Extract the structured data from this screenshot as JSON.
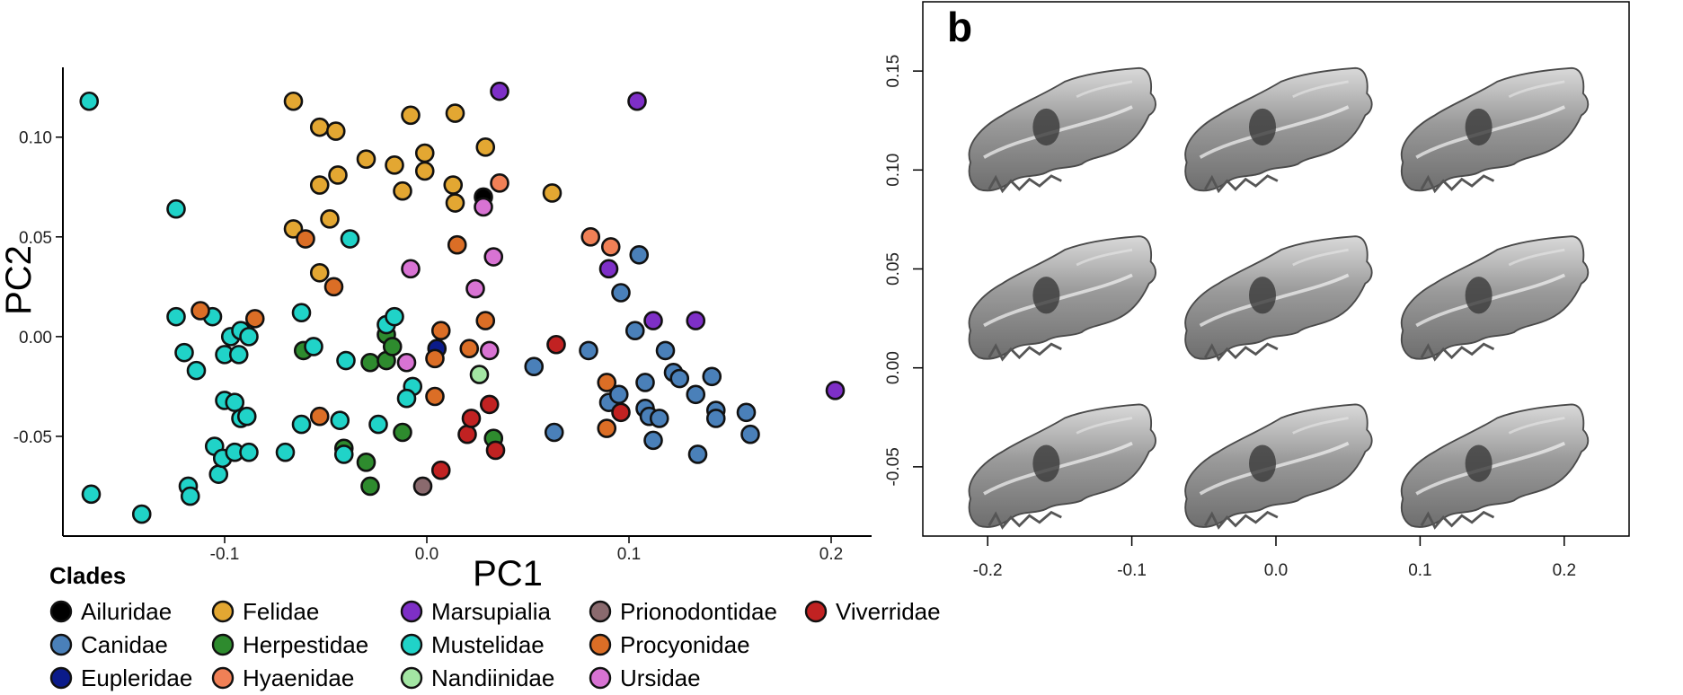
{
  "chart_data": [
    {
      "type": "scatter",
      "xlabel": "PC1",
      "ylabel": "PC2",
      "x_ticks": [
        "-0.1",
        "0.0",
        "0.1",
        "0.2"
      ],
      "y_ticks": [
        "0.10",
        "0.05",
        "0.00",
        "-0.05"
      ],
      "xlim": [
        -0.18,
        0.22
      ],
      "ylim": [
        -0.1,
        0.135
      ],
      "legend_title": "Clades",
      "legend_position": "bottom-left",
      "series": [
        {
          "name": "Ailuridae",
          "color": "#000000",
          "points": [
            [
              0.028,
              0.07
            ]
          ]
        },
        {
          "name": "Canidae",
          "color": "#4a80b9",
          "points": [
            [
              0.053,
              -0.015
            ],
            [
              0.063,
              -0.048
            ],
            [
              0.08,
              -0.007
            ],
            [
              0.09,
              -0.033
            ],
            [
              0.095,
              -0.029
            ],
            [
              0.096,
              0.022
            ],
            [
              0.103,
              0.003
            ],
            [
              0.105,
              0.041
            ],
            [
              0.108,
              -0.023
            ],
            [
              0.108,
              -0.036
            ],
            [
              0.11,
              -0.04
            ],
            [
              0.112,
              -0.052
            ],
            [
              0.115,
              -0.041
            ],
            [
              0.118,
              -0.007
            ],
            [
              0.122,
              -0.018
            ],
            [
              0.125,
              -0.021
            ],
            [
              0.133,
              -0.029
            ],
            [
              0.134,
              -0.059
            ],
            [
              0.141,
              -0.02
            ],
            [
              0.143,
              -0.037
            ],
            [
              0.143,
              -0.041
            ],
            [
              0.158,
              -0.038
            ],
            [
              0.16,
              -0.049
            ]
          ]
        },
        {
          "name": "Eupleridae",
          "color": "#0b1b8a",
          "points": [
            [
              0.005,
              -0.006
            ]
          ]
        },
        {
          "name": "Felidae",
          "color": "#e3a732",
          "points": [
            [
              -0.066,
              0.118
            ],
            [
              -0.066,
              0.054
            ],
            [
              -0.053,
              0.105
            ],
            [
              -0.053,
              0.076
            ],
            [
              -0.053,
              0.032
            ],
            [
              -0.048,
              0.059
            ],
            [
              -0.045,
              0.103
            ],
            [
              -0.044,
              0.081
            ],
            [
              -0.03,
              0.089
            ],
            [
              -0.016,
              0.086
            ],
            [
              -0.012,
              0.073
            ],
            [
              -0.008,
              0.111
            ],
            [
              -0.001,
              0.092
            ],
            [
              -0.001,
              0.083
            ],
            [
              0.013,
              0.076
            ],
            [
              0.014,
              0.112
            ],
            [
              0.014,
              0.067
            ],
            [
              0.029,
              0.095
            ],
            [
              0.062,
              0.072
            ]
          ]
        },
        {
          "name": "Herpestidae",
          "color": "#2e8b2e",
          "points": [
            [
              -0.061,
              -0.007
            ],
            [
              -0.041,
              -0.056
            ],
            [
              -0.03,
              -0.063
            ],
            [
              -0.028,
              -0.075
            ],
            [
              -0.028,
              -0.013
            ],
            [
              -0.02,
              -0.012
            ],
            [
              -0.02,
              0.001
            ],
            [
              -0.017,
              -0.005
            ],
            [
              -0.012,
              -0.048
            ],
            [
              0.033,
              -0.051
            ]
          ]
        },
        {
          "name": "Hyaenidae",
          "color": "#f08056",
          "points": [
            [
              0.036,
              0.077
            ],
            [
              0.081,
              0.05
            ],
            [
              0.091,
              0.045
            ]
          ]
        },
        {
          "name": "Marsupialia",
          "color": "#7e2fc7",
          "points": [
            [
              0.036,
              0.123
            ],
            [
              0.104,
              0.118
            ],
            [
              0.09,
              0.034
            ],
            [
              0.112,
              0.008
            ],
            [
              0.133,
              0.008
            ],
            [
              0.202,
              -0.027
            ]
          ]
        },
        {
          "name": "Mustelidae",
          "color": "#20d3c8",
          "points": [
            [
              -0.167,
              0.118
            ],
            [
              -0.124,
              0.064
            ],
            [
              -0.166,
              -0.079
            ],
            [
              -0.141,
              -0.089
            ],
            [
              -0.124,
              0.01
            ],
            [
              -0.12,
              -0.008
            ],
            [
              -0.118,
              -0.075
            ],
            [
              -0.117,
              -0.08
            ],
            [
              -0.114,
              -0.017
            ],
            [
              -0.106,
              0.01
            ],
            [
              -0.105,
              -0.055
            ],
            [
              -0.103,
              -0.069
            ],
            [
              -0.101,
              -0.061
            ],
            [
              -0.1,
              -0.009
            ],
            [
              -0.1,
              -0.032
            ],
            [
              -0.097,
              0.0
            ],
            [
              -0.095,
              -0.033
            ],
            [
              -0.095,
              -0.058
            ],
            [
              -0.093,
              -0.009
            ],
            [
              -0.092,
              0.003
            ],
            [
              -0.092,
              -0.041
            ],
            [
              -0.089,
              -0.04
            ],
            [
              -0.088,
              0.0
            ],
            [
              -0.088,
              -0.058
            ],
            [
              -0.07,
              -0.058
            ],
            [
              -0.062,
              -0.044
            ],
            [
              -0.062,
              0.012
            ],
            [
              -0.056,
              -0.005
            ],
            [
              -0.043,
              -0.042
            ],
            [
              -0.041,
              -0.059
            ],
            [
              -0.04,
              -0.012
            ],
            [
              -0.038,
              0.049
            ],
            [
              -0.024,
              -0.044
            ],
            [
              -0.02,
              0.006
            ],
            [
              -0.016,
              0.01
            ],
            [
              -0.007,
              -0.025
            ],
            [
              -0.01,
              -0.031
            ]
          ]
        },
        {
          "name": "Nandiinidae",
          "color": "#a3e6a3",
          "points": [
            [
              0.026,
              -0.019
            ]
          ]
        },
        {
          "name": "Prionodontidae",
          "color": "#8a6a6e",
          "points": [
            [
              -0.002,
              -0.075
            ]
          ]
        },
        {
          "name": "Procyonidae",
          "color": "#db6e26",
          "points": [
            [
              -0.112,
              0.013
            ],
            [
              -0.085,
              0.009
            ],
            [
              -0.06,
              0.049
            ],
            [
              -0.053,
              -0.04
            ],
            [
              -0.046,
              0.025
            ],
            [
              0.004,
              -0.011
            ],
            [
              0.004,
              -0.03
            ],
            [
              0.007,
              0.003
            ],
            [
              0.015,
              0.046
            ],
            [
              0.021,
              -0.006
            ],
            [
              0.029,
              0.008
            ],
            [
              0.089,
              -0.023
            ],
            [
              0.089,
              -0.046
            ]
          ]
        },
        {
          "name": "Ursidae",
          "color": "#d873d3",
          "points": [
            [
              -0.008,
              0.034
            ],
            [
              -0.01,
              -0.013
            ],
            [
              0.024,
              0.024
            ],
            [
              0.028,
              0.065
            ],
            [
              0.031,
              -0.007
            ],
            [
              0.033,
              0.04
            ]
          ]
        },
        {
          "name": "Viverridae",
          "color": "#c12222",
          "points": [
            [
              0.007,
              -0.067
            ],
            [
              0.02,
              -0.049
            ],
            [
              0.022,
              -0.041
            ],
            [
              0.031,
              -0.034
            ],
            [
              0.034,
              -0.057
            ],
            [
              0.064,
              -0.004
            ],
            [
              0.096,
              -0.038
            ]
          ]
        }
      ]
    },
    {
      "type": "scatter",
      "panel_label": "b",
      "x_ticks": [
        "-0.2",
        "-0.1",
        "0.0",
        "0.1",
        "0.2"
      ],
      "y_ticks": [
        "0.15",
        "0.10",
        "0.05",
        "0.00",
        "-0.05"
      ],
      "xlim": [
        -0.245,
        0.245
      ],
      "ylim": [
        -0.085,
        0.185
      ],
      "morphospace_skulls": {
        "columns": [
          -0.15,
          0.0,
          0.15
        ],
        "rows": [
          0.12,
          0.035,
          -0.05
        ]
      }
    }
  ]
}
